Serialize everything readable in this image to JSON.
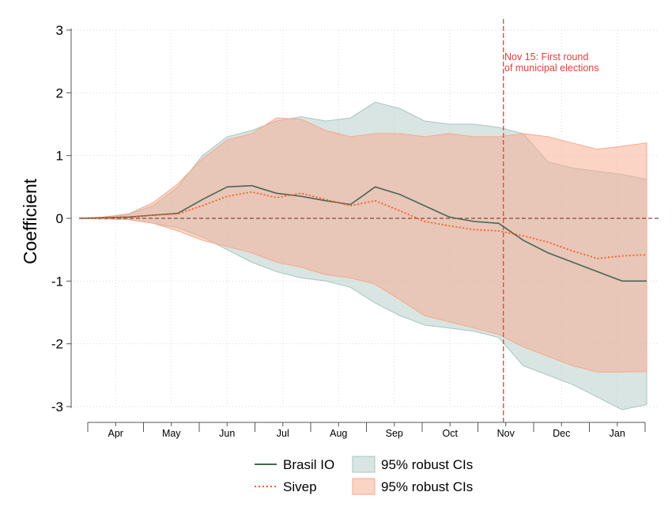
{
  "chart_data": {
    "type": "line",
    "title": "",
    "xlabel": "",
    "ylabel": "Coefficient",
    "ylim": [
      -3,
      3
    ],
    "yticks": [
      3,
      2,
      1,
      0,
      -1,
      -2,
      -3
    ],
    "ytick_labels": [
      "3",
      "2",
      "1",
      "0",
      "-1",
      "-2",
      "-3"
    ],
    "month_labels": [
      "Apr",
      "May",
      "Jun",
      "Jul",
      "Aug",
      "Sep",
      "Oct",
      "Nov",
      "Dec",
      "Jan"
    ],
    "x_start": "Mar 15",
    "x_end": "Jan 31",
    "x_unit": "week",
    "grid": true,
    "reference_line_y": 0,
    "annotation": {
      "text_line1": "Nov 15: First round",
      "text_line2": "of municipal elections",
      "at_month": "Nov 15"
    },
    "legend": {
      "placement": "bottom",
      "items": [
        {
          "label": "Brasil IO",
          "type": "line",
          "color": "#4a6656"
        },
        {
          "label": "95% robust CIs",
          "type": "area",
          "color": "#a9c6bf"
        },
        {
          "label": "Sivep",
          "type": "dotted-line",
          "color": "#ff5a1f"
        },
        {
          "label": "95% robust CIs",
          "type": "area",
          "color": "#f7a98d"
        }
      ]
    },
    "colors": {
      "brasil_line": "#4a6656",
      "brasil_band": "#a9c6bf",
      "sivep_line": "#ff5a1f",
      "sivep_band": "#f7a98d",
      "election_line": "#e0403a",
      "zero_line": "#8b4a3c"
    },
    "series": [
      {
        "name": "Brasil IO",
        "x_weeks": [
          0,
          2,
          4,
          6,
          8,
          10,
          12,
          14,
          16,
          18,
          20,
          22,
          24,
          26,
          28,
          30,
          32,
          34,
          36,
          38,
          40,
          42,
          44,
          46
        ],
        "values": [
          0,
          0.01,
          0.02,
          0.05,
          0.08,
          0.3,
          0.5,
          0.52,
          0.4,
          0.35,
          0.28,
          0.22,
          0.5,
          0.38,
          0.2,
          0.02,
          -0.05,
          -0.08,
          -0.35,
          -0.55,
          -0.7,
          -0.85,
          -1.0,
          -1.0
        ],
        "ci_upper": [
          0,
          0.02,
          0.06,
          0.2,
          0.5,
          1.0,
          1.3,
          1.4,
          1.55,
          1.62,
          1.55,
          1.6,
          1.85,
          1.75,
          1.55,
          1.5,
          1.5,
          1.45,
          1.35,
          0.9,
          0.8,
          0.75,
          0.7,
          0.62
        ],
        "ci_lower": [
          0,
          -0.01,
          -0.02,
          -0.08,
          -0.15,
          -0.3,
          -0.5,
          -0.7,
          -0.85,
          -0.95,
          -1.0,
          -1.1,
          -1.35,
          -1.55,
          -1.7,
          -1.75,
          -1.8,
          -1.9,
          -2.35,
          -2.5,
          -2.65,
          -2.85,
          -3.05,
          -2.97
        ]
      },
      {
        "name": "Sivep",
        "x_weeks": [
          0,
          2,
          4,
          6,
          8,
          10,
          12,
          14,
          16,
          18,
          20,
          22,
          24,
          26,
          28,
          30,
          32,
          34,
          36,
          38,
          40,
          42,
          44,
          46
        ],
        "values": [
          0,
          0.01,
          0.02,
          0.05,
          0.07,
          0.2,
          0.35,
          0.42,
          0.33,
          0.4,
          0.3,
          0.2,
          0.28,
          0.12,
          -0.05,
          -0.12,
          -0.18,
          -0.2,
          -0.28,
          -0.38,
          -0.52,
          -0.64,
          -0.6,
          -0.58
        ],
        "ci_upper": [
          0,
          0.02,
          0.07,
          0.25,
          0.55,
          0.95,
          1.25,
          1.35,
          1.6,
          1.58,
          1.4,
          1.3,
          1.35,
          1.35,
          1.3,
          1.35,
          1.3,
          1.3,
          1.35,
          1.3,
          1.2,
          1.1,
          1.15,
          1.2
        ],
        "ci_lower": [
          0,
          -0.01,
          -0.02,
          -0.08,
          -0.2,
          -0.35,
          -0.45,
          -0.55,
          -0.7,
          -0.78,
          -0.9,
          -0.95,
          -1.05,
          -1.3,
          -1.55,
          -1.65,
          -1.75,
          -1.85,
          -2.05,
          -2.2,
          -2.35,
          -2.45,
          -2.45,
          -2.44
        ]
      }
    ]
  }
}
